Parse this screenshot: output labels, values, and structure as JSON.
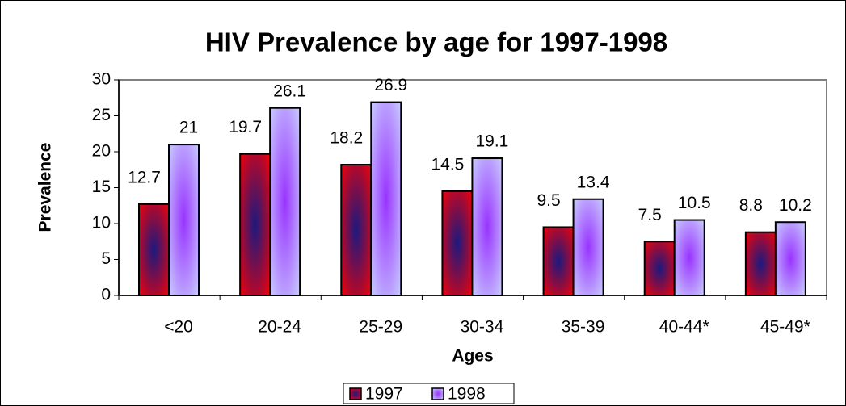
{
  "chart_data": {
    "type": "bar",
    "title": "HIV Prevalence by age for 1997-1998",
    "x_label": "Ages",
    "y_label": "Prevalence",
    "categories": [
      "<20",
      "20-24",
      "25-29",
      "30-34",
      "35-39",
      "40-44*",
      "45-49*"
    ],
    "series": [
      {
        "name": "1997",
        "color": "#ff0000",
        "center_color": "#1a1a80",
        "values": [
          12.7,
          19.7,
          18.2,
          14.5,
          9.5,
          7.5,
          8.8
        ]
      },
      {
        "name": "1998",
        "color": "#ccd9ff",
        "center_color": "#9933ff",
        "values": [
          21,
          26.1,
          26.9,
          19.1,
          13.4,
          10.5,
          10.2
        ]
      }
    ],
    "ylim": [
      0,
      30
    ],
    "yticks": [
      0,
      5,
      10,
      15,
      20,
      25,
      30
    ],
    "grid": false,
    "legend": "bottom"
  }
}
